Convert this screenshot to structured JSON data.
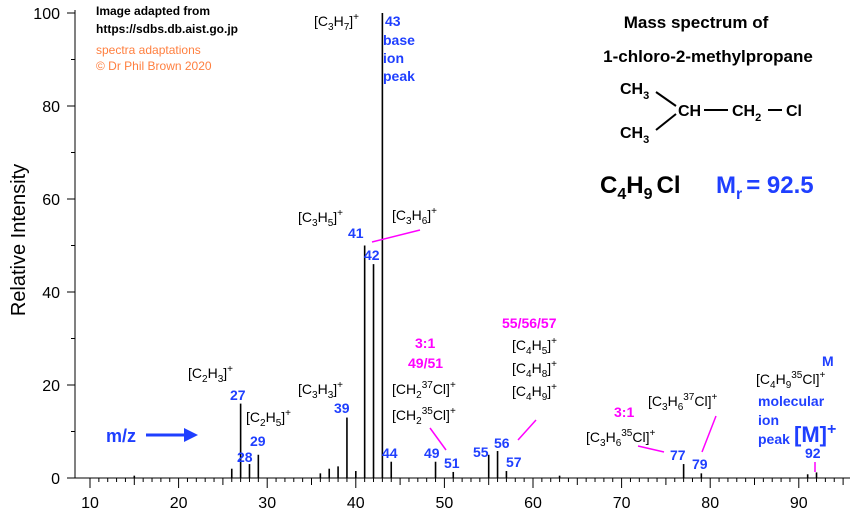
{
  "credits": {
    "line1": "Image adapted from",
    "line2": "https://sdbs.db.aist.go.jp",
    "line3": "spectra adaptations",
    "line4": "© Dr Phil Brown 2020"
  },
  "header": {
    "title_line1": "Mass spectrum of",
    "title_line2": "1-chloro-2-methylpropane"
  },
  "structure": {
    "ch3_top": "CH",
    "ch3_bottom": "CH",
    "ch": "CH",
    "ch2": "CH",
    "cl": "Cl",
    "sub3": "3",
    "sub2": "2"
  },
  "formula": {
    "c": "C",
    "c_sub": "4",
    "h": "H",
    "h_sub": "9",
    "cl": "Cl",
    "mr_m": "M",
    "mr_sub": "r",
    "mr_value": "= 92.5"
  },
  "mz_label": "m/z",
  "chart_data": {
    "type": "bar",
    "xlabel": "",
    "ylabel": "Relative Intensity",
    "xlim": [
      10,
      95
    ],
    "ylim": [
      0,
      100
    ],
    "x_ticks": [
      10,
      20,
      30,
      40,
      50,
      60,
      70,
      80,
      90
    ],
    "y_ticks": [
      0,
      20,
      40,
      60,
      80,
      100
    ],
    "peaks": [
      {
        "mz": 15,
        "intensity": 0.5
      },
      {
        "mz": 26,
        "intensity": 2
      },
      {
        "mz": 27,
        "intensity": 16
      },
      {
        "mz": 28,
        "intensity": 3
      },
      {
        "mz": 29,
        "intensity": 5
      },
      {
        "mz": 36,
        "intensity": 1
      },
      {
        "mz": 37,
        "intensity": 2
      },
      {
        "mz": 38,
        "intensity": 2.5
      },
      {
        "mz": 39,
        "intensity": 13
      },
      {
        "mz": 40,
        "intensity": 1.5
      },
      {
        "mz": 41,
        "intensity": 50
      },
      {
        "mz": 42,
        "intensity": 46
      },
      {
        "mz": 43,
        "intensity": 100
      },
      {
        "mz": 44,
        "intensity": 3.5
      },
      {
        "mz": 49,
        "intensity": 3.5
      },
      {
        "mz": 51,
        "intensity": 1.3
      },
      {
        "mz": 55,
        "intensity": 5
      },
      {
        "mz": 56,
        "intensity": 5.8
      },
      {
        "mz": 57,
        "intensity": 1.5
      },
      {
        "mz": 63,
        "intensity": 0.5
      },
      {
        "mz": 77,
        "intensity": 3
      },
      {
        "mz": 79,
        "intensity": 1
      },
      {
        "mz": 91,
        "intensity": 0.8
      },
      {
        "mz": 92,
        "intensity": 1.2
      }
    ],
    "peak_labels": [
      "27",
      "28",
      "29",
      "39",
      "41",
      "42",
      "43",
      "44",
      "49",
      "51",
      "55",
      "56",
      "57",
      "77",
      "79",
      "92"
    ],
    "annotations": {
      "base_word": "base",
      "ion_word": "ion",
      "peak_word": "peak",
      "c3h7": "[C",
      "c3h5": "[C",
      "c3h6": "[C",
      "c2h3": "[C",
      "c2h5": "[C",
      "c3h3": "[C",
      "ratio_a": "3:1",
      "mz_a": "49/51",
      "group_b": "55/56/57",
      "ratio_c": "3:1",
      "m_top": "M",
      "molecular": "molecular",
      "ion2": "ion",
      "peak2": "peak",
      "m_bracket": "[M]"
    }
  }
}
